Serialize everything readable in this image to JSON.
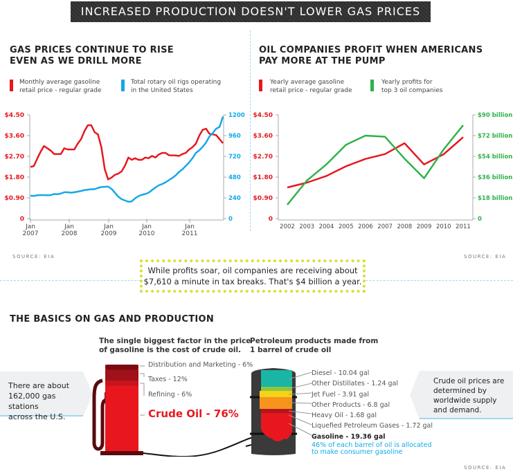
{
  "title": "INCREASED PRODUCTION DOESN'T LOWER GAS PRICES",
  "colors": {
    "red": "#e8171e",
    "blue": "#13a9e6",
    "green": "#2fb24a",
    "dark": "#333333",
    "callout_border": "#d8e030"
  },
  "left": {
    "heading_1": "GAS PRICES CONTINUE TO RISE",
    "heading_2": "EVEN AS WE DRILL MORE",
    "legend": [
      {
        "label_1": "Monthly average gasoline",
        "label_2": "retail price - regular grade",
        "color": "#e8171e"
      },
      {
        "label_1": "Total rotary oil rigs operating",
        "label_2": "in the United States",
        "color": "#13a9e6"
      }
    ],
    "source": "SOURCE: EIA"
  },
  "right": {
    "heading_1": "OIL COMPANIES PROFIT WHEN AMERICANS",
    "heading_2": "PAY MORE AT THE PUMP",
    "legend": [
      {
        "label_1": "Yearly average gasoline",
        "label_2": "retail price - regular grade",
        "color": "#e8171e"
      },
      {
        "label_1": "Yearly profits for",
        "label_2": "top 3 oil companies",
        "color": "#2fb24a"
      }
    ],
    "source": "SOURCE: EIA"
  },
  "chart_data": [
    {
      "type": "line",
      "x_start": "Jan 2007",
      "x_end": "Oct 2011",
      "x_ticks": [
        [
          "Jan",
          "2007"
        ],
        [
          "Jan",
          "2008"
        ],
        [
          "Jan",
          "2009"
        ],
        [
          "Jan",
          "2010"
        ],
        [
          "Jan",
          "2011"
        ]
      ],
      "y_left": {
        "ticks": [
          "0",
          "$0.90",
          "$1.80",
          "$2.70",
          "$3.60",
          "$4.50"
        ],
        "range": [
          0,
          4.5
        ]
      },
      "y_right": {
        "ticks": [
          "0",
          "240",
          "480",
          "720",
          "960",
          "1200"
        ],
        "range": [
          0,
          1200
        ]
      },
      "grid": false,
      "series": [
        {
          "name": "Monthly average gasoline retail price - regular grade",
          "axis": "left",
          "color": "#e8171e",
          "values": [
            2.24,
            2.28,
            2.6,
            2.9,
            3.15,
            3.05,
            2.95,
            2.8,
            2.8,
            2.8,
            3.05,
            3.0,
            3.0,
            3.0,
            3.25,
            3.45,
            3.8,
            4.05,
            4.05,
            3.75,
            3.65,
            3.1,
            2.15,
            1.7,
            1.78,
            1.9,
            1.95,
            2.05,
            2.3,
            2.65,
            2.55,
            2.62,
            2.55,
            2.55,
            2.65,
            2.62,
            2.72,
            2.65,
            2.78,
            2.85,
            2.85,
            2.75,
            2.74,
            2.74,
            2.72,
            2.8,
            2.85,
            3.0,
            3.1,
            3.25,
            3.6,
            3.85,
            3.9,
            3.68,
            3.65,
            3.62,
            3.45,
            3.27
          ]
        },
        {
          "name": "Total rotary oil rigs operating in the United States",
          "axis": "right",
          "color": "#13a9e6",
          "values": [
            265,
            262,
            270,
            272,
            272,
            270,
            272,
            285,
            282,
            290,
            305,
            305,
            300,
            305,
            312,
            320,
            330,
            335,
            340,
            340,
            355,
            365,
            368,
            370,
            345,
            300,
            255,
            225,
            210,
            195,
            200,
            235,
            260,
            275,
            285,
            300,
            330,
            360,
            385,
            400,
            420,
            445,
            470,
            500,
            540,
            570,
            610,
            650,
            700,
            760,
            790,
            830,
            880,
            950,
            990,
            1040,
            1060,
            1180
          ]
        }
      ]
    },
    {
      "type": "line",
      "categories": [
        "2002",
        "2003",
        "2004",
        "2005",
        "2006",
        "2007",
        "2008",
        "2009",
        "2010",
        "2011"
      ],
      "y_left": {
        "ticks": [
          "0",
          "$0.90",
          "$1.80",
          "$2.70",
          "$3.60",
          "$4.50"
        ],
        "range": [
          0,
          4.5
        ]
      },
      "y_right": {
        "ticks": [
          "0",
          "$18 billion",
          "$36 billion",
          "$54 billion",
          "$72 billion",
          "$90 billion"
        ],
        "range": [
          0,
          90
        ]
      },
      "grid": false,
      "series": [
        {
          "name": "Yearly average gasoline retail price - regular grade",
          "axis": "left",
          "color": "#e8171e",
          "values": [
            1.35,
            1.56,
            1.85,
            2.27,
            2.59,
            2.8,
            3.27,
            2.35,
            2.79,
            3.53
          ]
        },
        {
          "name": "Yearly profits for top 3 oil companies",
          "axis": "right",
          "color": "#2fb24a",
          "values": [
            12,
            33,
            47,
            64,
            72,
            71,
            52,
            35,
            60,
            81
          ]
        }
      ]
    }
  ],
  "callout": {
    "line_1": "While profits soar, oil companies are receiving about",
    "line_2": "$7,610 a minute in tax breaks. That's $4 billion a year."
  },
  "basics": {
    "heading": "THE BASICS ON GAS AND PRODUCTION",
    "stations": {
      "line_1": "There are about",
      "line_2": "162,000 gas stations",
      "line_3": "across the U.S."
    },
    "pump_title_1": "The single biggest factor in the price",
    "pump_title_2": "of gasoline is the cost of crude oil.",
    "pump_parts": [
      {
        "label": "Distribution and Marketing - 6%",
        "percent": 6,
        "color": "#7a0a0f"
      },
      {
        "label": "Taxes - 12%",
        "percent": 12,
        "color": "#a0111a"
      },
      {
        "label": "Refining - 6%",
        "percent": 6,
        "color": "#c8151d"
      },
      {
        "label": "Crude Oil - 76%",
        "percent": 76,
        "color": "#e8171e"
      }
    ],
    "barrel_title_1": "Petroleum products made from",
    "barrel_title_2": "1 barrel of crude oil",
    "products": [
      {
        "label": "Diesel - 10.04 gal",
        "color": "#1ab5a5"
      },
      {
        "label": "Other Distillates - 1.24 gal",
        "color": "#8cc63f"
      },
      {
        "label": "Jet Fuel - 3.91 gal",
        "color": "#f5d316"
      },
      {
        "label": "Other Products - 6.8 gal",
        "color": "#f7941d"
      },
      {
        "label": "Heavy Oil - 1.68 gal",
        "color": "#b5151d"
      },
      {
        "label": "Liquefied Petroleum Gases - 1.72 gal",
        "color": "#d9261c"
      },
      {
        "label": "Gasoline - 19.36 gal",
        "color": "#e8171e"
      }
    ],
    "gasoline_note_1": "46% of each barrel of oil is allocated",
    "gasoline_note_2": "to make consumer gasoline",
    "supply": {
      "line_1": "Crude oil prices are",
      "line_2": "determined by",
      "line_3": "worldwide supply",
      "line_4": "and demand."
    },
    "source": "SOURCE: EIA"
  }
}
